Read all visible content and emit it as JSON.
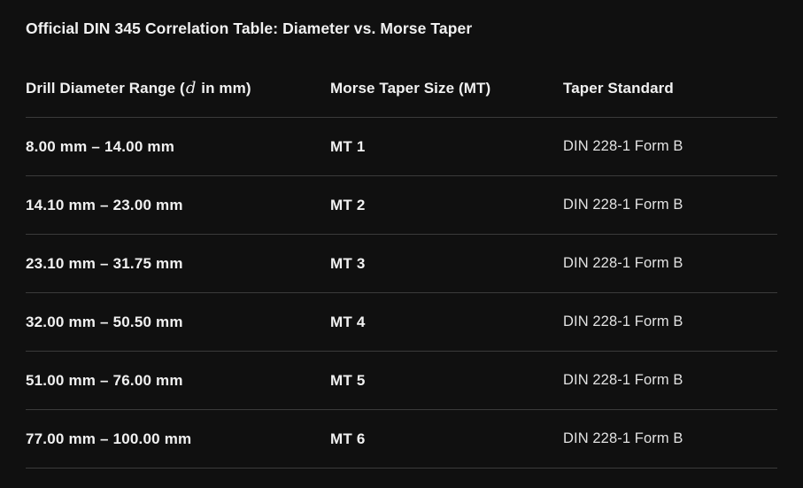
{
  "page": {
    "title": "Official DIN 345 Correlation Table: Diameter vs. Morse Taper"
  },
  "table": {
    "columns": {
      "diameter": {
        "prefix": "Drill Diameter Range (",
        "math_var": "d",
        "suffix": " in mm)"
      },
      "taper_size": "Morse Taper Size (MT)",
      "standard": "Taper Standard"
    },
    "rows": [
      {
        "range": "8.00 mm – 14.00 mm",
        "size": "MT 1",
        "standard": "DIN 228-1 Form B"
      },
      {
        "range": "14.10 mm – 23.00 mm",
        "size": "MT 2",
        "standard": "DIN 228-1 Form B"
      },
      {
        "range": "23.10 mm – 31.75 mm",
        "size": "MT 3",
        "standard": "DIN 228-1 Form B"
      },
      {
        "range": "32.00 mm – 50.50 mm",
        "size": "MT 4",
        "standard": "DIN 228-1 Form B"
      },
      {
        "range": "51.00 mm – 76.00 mm",
        "size": "MT 5",
        "standard": "DIN 228-1 Form B"
      },
      {
        "range": "77.00 mm – 100.00 mm",
        "size": "MT 6",
        "standard": "DIN 228-1 Form B"
      }
    ]
  },
  "colors": {
    "background": "#101010",
    "text_primary": "#f1f1f1",
    "text_secondary": "#e2e2e2",
    "divider": "#3b3b3b"
  }
}
